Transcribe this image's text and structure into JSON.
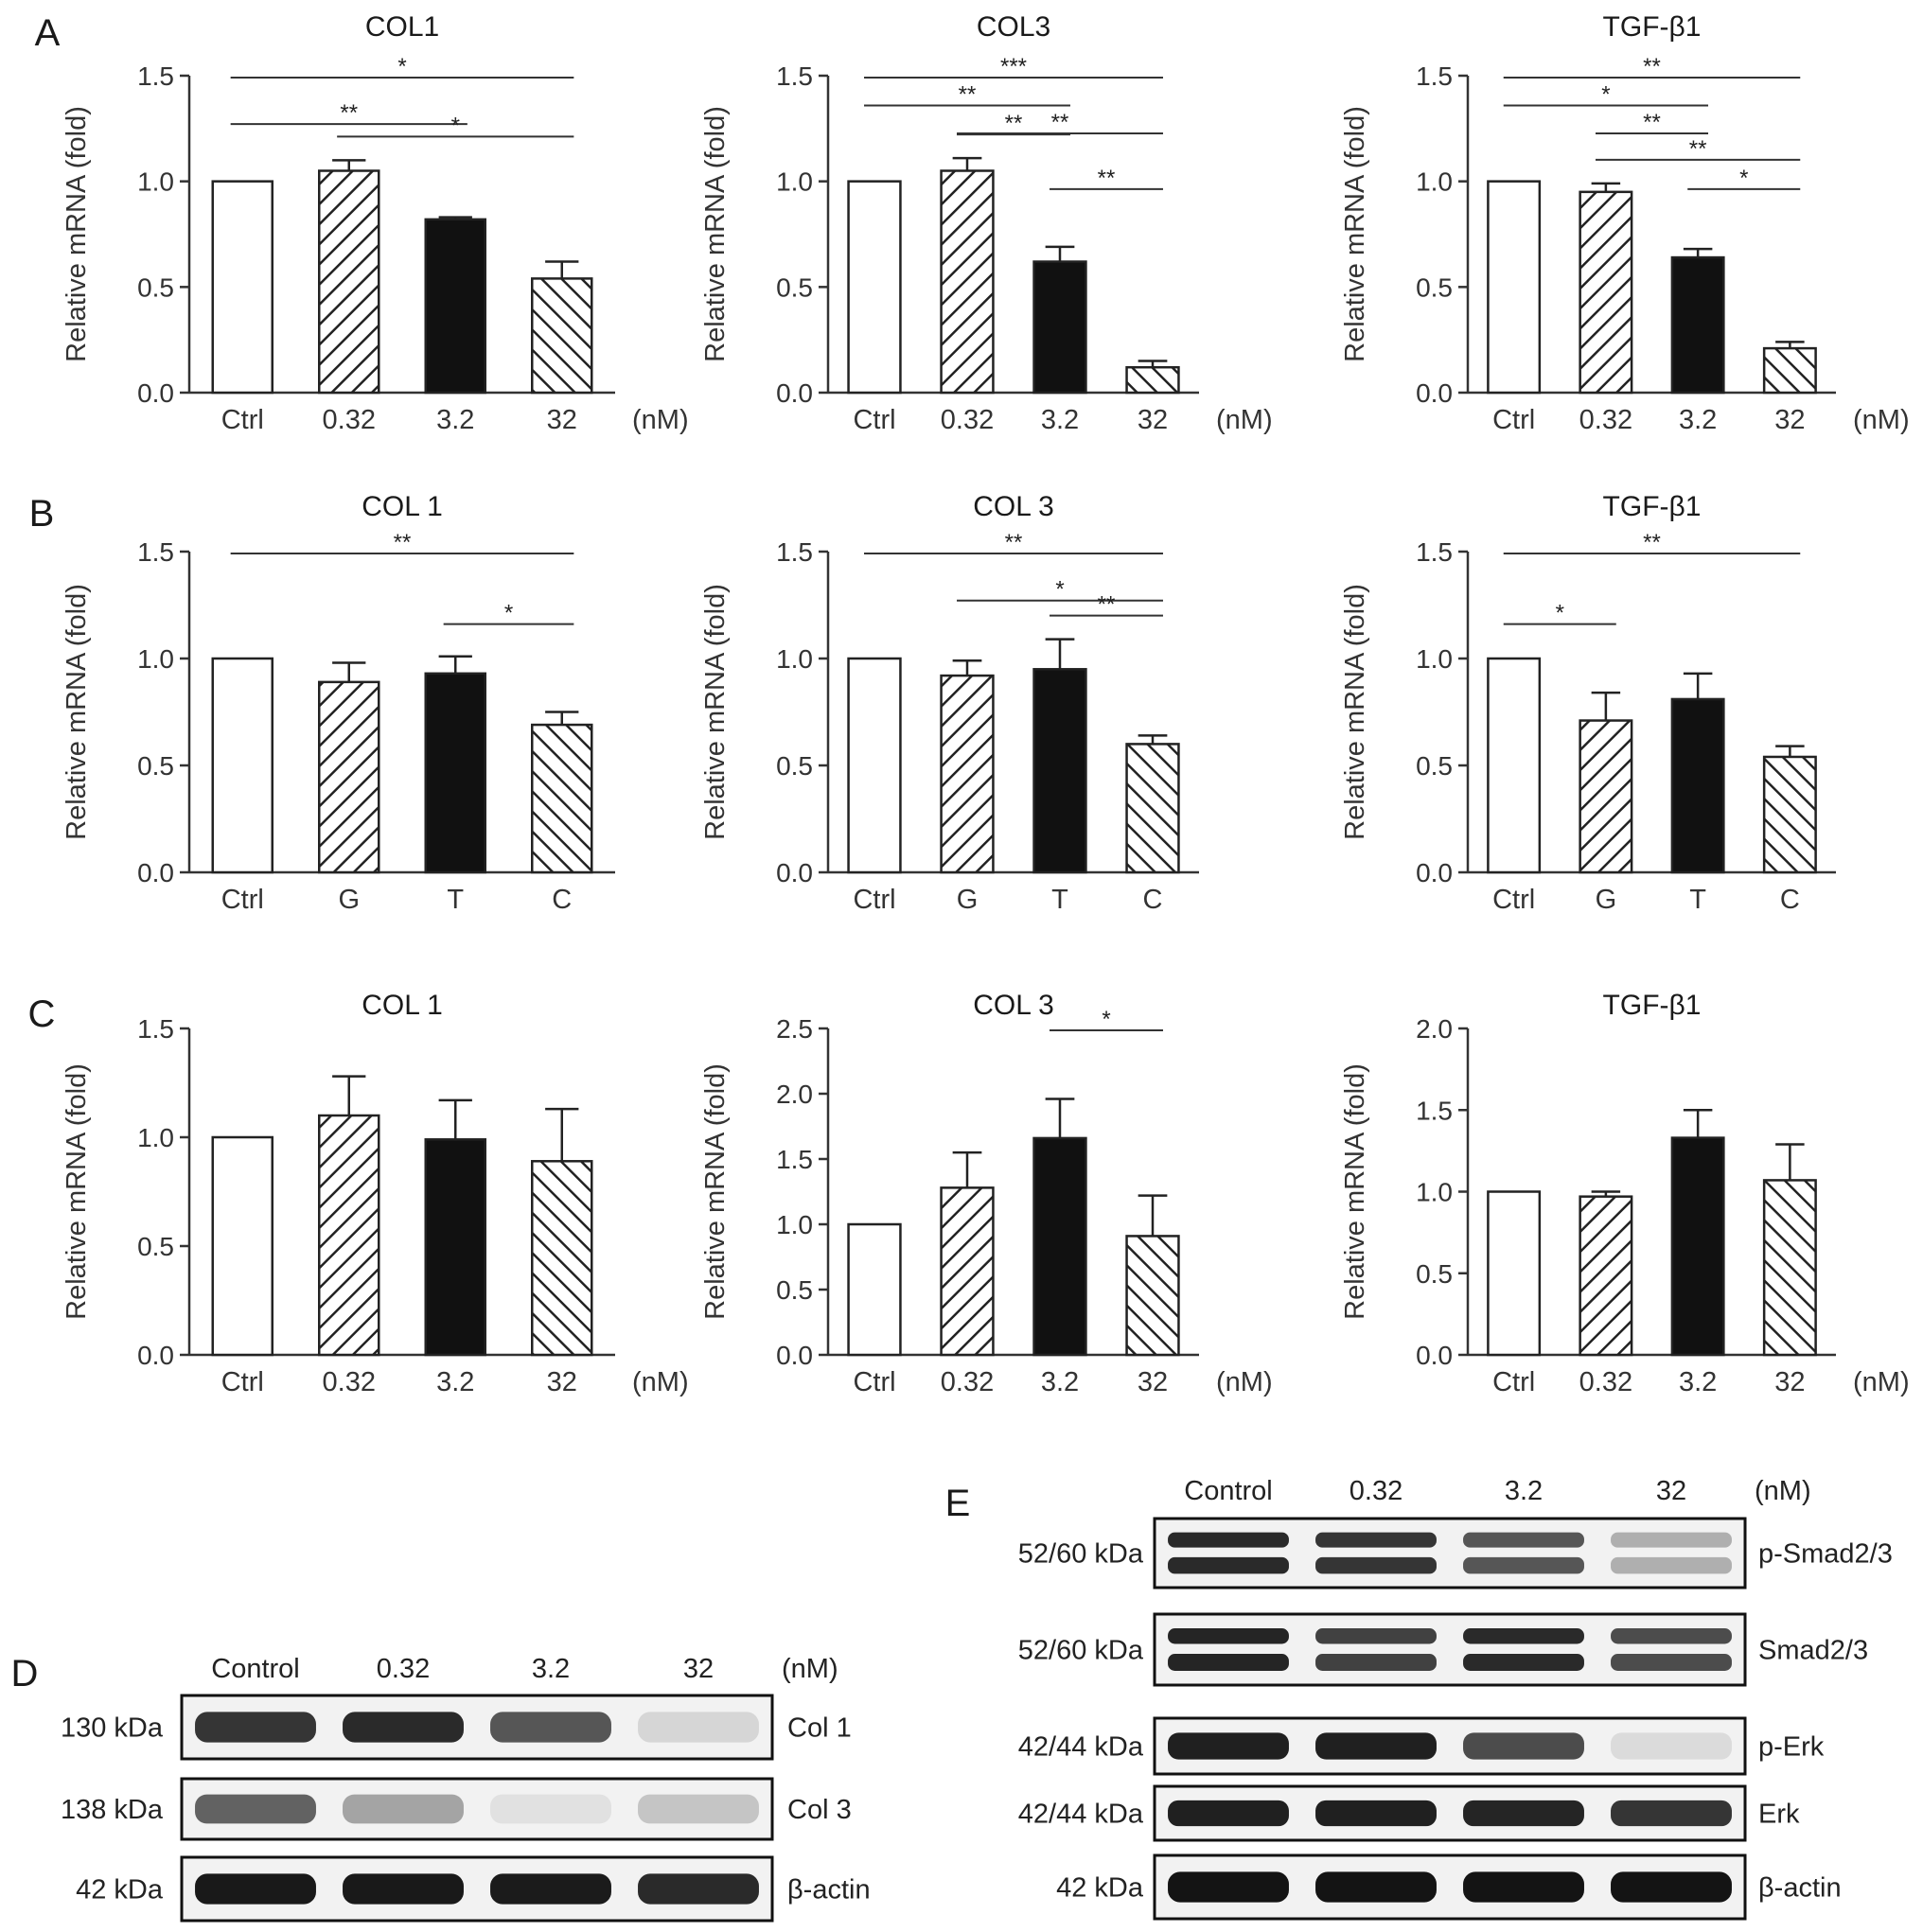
{
  "panels": {
    "A": {
      "label": "A",
      "unit": "(nM)",
      "charts": [
        {
          "type": "bar",
          "title": "COL1",
          "categories": [
            "Ctrl",
            "0.32",
            "3.2",
            "32"
          ],
          "values": [
            1.0,
            1.05,
            0.82,
            0.54
          ],
          "errors": [
            0,
            0.05,
            0.01,
            0.08
          ],
          "ylabel": "Relative mRNA (fold)",
          "ylim": [
            0,
            1.5
          ],
          "yticks": [
            "0.0",
            "0.5",
            "1.0",
            "1.5"
          ],
          "xunit": "(nM)",
          "sig": [
            {
              "from": 0,
              "to": 3,
              "text": "*"
            },
            {
              "from": 0,
              "to": 2,
              "text": "**"
            },
            {
              "from": 1,
              "to": 3,
              "text": "*"
            }
          ]
        },
        {
          "type": "bar",
          "title": "COL3",
          "categories": [
            "Ctrl",
            "0.32",
            "3.2",
            "32"
          ],
          "values": [
            1.0,
            1.05,
            0.62,
            0.12
          ],
          "errors": [
            0,
            0.06,
            0.07,
            0.03
          ],
          "ylabel": "Relative mRNA (fold)",
          "ylim": [
            0,
            1.5
          ],
          "yticks": [
            "0.0",
            "0.5",
            "1.0",
            "1.5"
          ],
          "xunit": "(nM)",
          "sig": [
            {
              "from": 0,
              "to": 3,
              "text": "***"
            },
            {
              "from": 0,
              "to": 2,
              "text": "**"
            },
            {
              "from": 1,
              "to": 3,
              "text": "**"
            },
            {
              "from": 1,
              "to": 2,
              "text": "**"
            },
            {
              "from": 2,
              "to": 3,
              "text": "**"
            }
          ]
        },
        {
          "type": "bar",
          "title": "TGF-β1",
          "categories": [
            "Ctrl",
            "0.32",
            "3.2",
            "32"
          ],
          "values": [
            1.0,
            0.95,
            0.64,
            0.21
          ],
          "errors": [
            0,
            0.04,
            0.04,
            0.03
          ],
          "ylabel": "Relative mRNA (fold)",
          "ylim": [
            0,
            1.5
          ],
          "yticks": [
            "0.0",
            "0.5",
            "1.0",
            "1.5"
          ],
          "xunit": "(nM)",
          "sig": [
            {
              "from": 0,
              "to": 3,
              "text": "**"
            },
            {
              "from": 0,
              "to": 2,
              "text": "*"
            },
            {
              "from": 1,
              "to": 2,
              "text": "**"
            },
            {
              "from": 1,
              "to": 3,
              "text": "**"
            },
            {
              "from": 2,
              "to": 3,
              "text": "*"
            }
          ]
        }
      ]
    },
    "B": {
      "label": "B",
      "charts": [
        {
          "type": "bar",
          "title": "COL 1",
          "categories": [
            "Ctrl",
            "G",
            "T",
            "C"
          ],
          "values": [
            1.0,
            0.89,
            0.93,
            0.69
          ],
          "errors": [
            0,
            0.09,
            0.08,
            0.06
          ],
          "ylabel": "Relative mRNA (fold)",
          "ylim": [
            0,
            1.5
          ],
          "yticks": [
            "0.0",
            "0.5",
            "1.0",
            "1.5"
          ],
          "xunit": "",
          "sig": [
            {
              "from": 0,
              "to": 3,
              "text": "**"
            },
            {
              "from": 2,
              "to": 3,
              "text": "*"
            }
          ]
        },
        {
          "type": "bar",
          "title": "COL 3",
          "categories": [
            "Ctrl",
            "G",
            "T",
            "C"
          ],
          "values": [
            1.0,
            0.92,
            0.95,
            0.6
          ],
          "errors": [
            0,
            0.07,
            0.14,
            0.04
          ],
          "ylabel": "Relative mRNA (fold)",
          "ylim": [
            0,
            1.5
          ],
          "yticks": [
            "0.0",
            "0.5",
            "1.0",
            "1.5"
          ],
          "xunit": "",
          "sig": [
            {
              "from": 0,
              "to": 3,
              "text": "**"
            },
            {
              "from": 1,
              "to": 3,
              "text": "*"
            },
            {
              "from": 2,
              "to": 3,
              "text": "**"
            }
          ]
        },
        {
          "type": "bar",
          "title": "TGF-β1",
          "categories": [
            "Ctrl",
            "G",
            "T",
            "C"
          ],
          "values": [
            1.0,
            0.71,
            0.81,
            0.54
          ],
          "errors": [
            0,
            0.13,
            0.12,
            0.05
          ],
          "ylabel": "Relative mRNA (fold)",
          "ylim": [
            0,
            1.5
          ],
          "yticks": [
            "0.0",
            "0.5",
            "1.0",
            "1.5"
          ],
          "xunit": "",
          "sig": [
            {
              "from": 0,
              "to": 3,
              "text": "**"
            },
            {
              "from": 0,
              "to": 1,
              "text": "*"
            }
          ]
        }
      ]
    },
    "C": {
      "label": "C",
      "charts": [
        {
          "type": "bar",
          "title": "COL 1",
          "categories": [
            "Ctrl",
            "0.32",
            "3.2",
            "32"
          ],
          "values": [
            1.0,
            1.1,
            0.99,
            0.89
          ],
          "errors": [
            0,
            0.18,
            0.18,
            0.24
          ],
          "ylabel": "Relative mRNA (fold)",
          "ylim": [
            0,
            1.5
          ],
          "yticks": [
            "0.0",
            "0.5",
            "1.0",
            "1.5"
          ],
          "xunit": "(nM)",
          "sig": []
        },
        {
          "type": "bar",
          "title": "COL 3",
          "categories": [
            "Ctrl",
            "0.32",
            "3.2",
            "32"
          ],
          "values": [
            1.0,
            1.28,
            1.66,
            0.91
          ],
          "errors": [
            0,
            0.27,
            0.3,
            0.31
          ],
          "ylabel": "Relative mRNA (fold)",
          "ylim": [
            0,
            2.5
          ],
          "yticks": [
            "0.0",
            "0.5",
            "1.0",
            "1.5",
            "2.0",
            "2.5"
          ],
          "xunit": "(nM)",
          "sig": [
            {
              "from": 2,
              "to": 3,
              "text": "*"
            }
          ]
        },
        {
          "type": "bar",
          "title": "TGF-β1",
          "categories": [
            "Ctrl",
            "0.32",
            "3.2",
            "32"
          ],
          "values": [
            1.0,
            0.97,
            1.33,
            1.07
          ],
          "errors": [
            0,
            0.03,
            0.17,
            0.22
          ],
          "ylabel": "Relative mRNA (fold)",
          "ylim": [
            0,
            2.0
          ],
          "yticks": [
            "0.0",
            "0.5",
            "1.0",
            "1.5",
            "2.0"
          ],
          "xunit": "(nM)",
          "sig": []
        }
      ]
    },
    "D": {
      "label": "D",
      "lanes": [
        "Control",
        "0.32",
        "3.2",
        "32"
      ],
      "unit": "(nM)",
      "blots": [
        {
          "kda": "130 kDa",
          "protein": "Col 1",
          "intensity": [
            0.85,
            0.9,
            0.7,
            0.12
          ]
        },
        {
          "kda": "138 kDa",
          "protein": "Col 3",
          "intensity": [
            0.65,
            0.35,
            0.08,
            0.2
          ]
        },
        {
          "kda": "42 kDa",
          "protein": "β-actin",
          "intensity": [
            0.98,
            0.98,
            0.97,
            0.9
          ]
        }
      ]
    },
    "E": {
      "label": "E",
      "lanes": [
        "Control",
        "0.32",
        "3.2",
        "32"
      ],
      "unit": "(nM)",
      "blots": [
        {
          "kda": "52/60 kDa",
          "protein": "p-Smad2/3",
          "intensity": [
            0.9,
            0.85,
            0.7,
            0.3
          ],
          "double": true
        },
        {
          "kda": "52/60 kDa",
          "protein": "Smad2/3",
          "intensity": [
            0.92,
            0.8,
            0.9,
            0.75
          ],
          "double": true
        },
        {
          "kda": "42/44 kDa",
          "protein": "p-Erk",
          "intensity": [
            0.95,
            0.95,
            0.75,
            0.1
          ]
        },
        {
          "kda": "42/44 kDa",
          "protein": "Erk",
          "intensity": [
            0.95,
            0.95,
            0.92,
            0.85
          ]
        },
        {
          "kda": "42 kDa",
          "protein": "β-actin",
          "intensity": [
            1.0,
            1.0,
            1.0,
            1.0
          ]
        }
      ]
    }
  },
  "colors": {
    "open": "#ffffff",
    "solid": "#111111",
    "hatch": "#222222",
    "axis": "#333333",
    "blot": "#141414"
  }
}
